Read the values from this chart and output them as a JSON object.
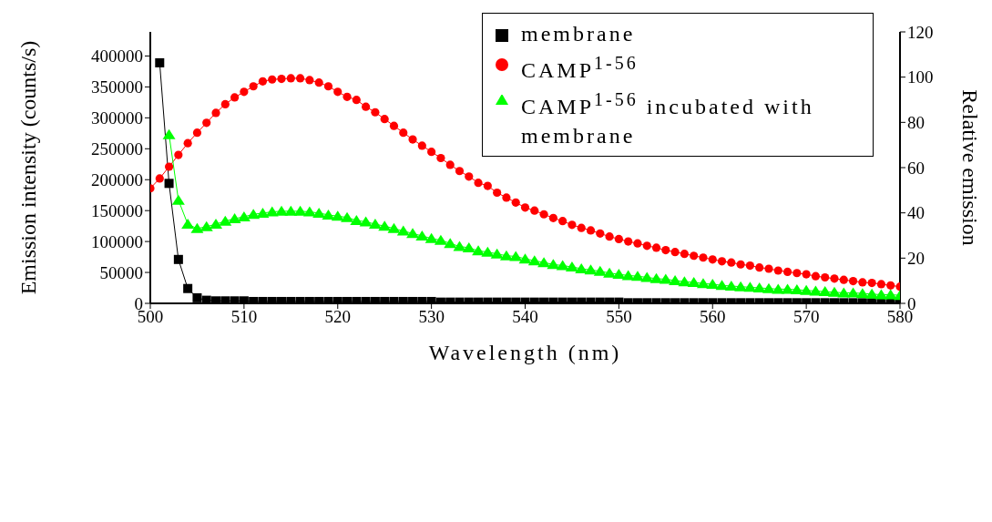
{
  "chart_data": {
    "type": "line",
    "xlabel": "Wavelength (nm)",
    "ylabel": "Emission intensity (counts/s)",
    "y2label": "Relative emission",
    "x": [
      500,
      501,
      502,
      503,
      504,
      505,
      506,
      507,
      508,
      509,
      510,
      511,
      512,
      513,
      514,
      515,
      516,
      517,
      518,
      519,
      520,
      521,
      522,
      523,
      524,
      525,
      526,
      527,
      528,
      529,
      530,
      531,
      532,
      533,
      534,
      535,
      536,
      537,
      538,
      539,
      540,
      541,
      542,
      543,
      544,
      545,
      546,
      547,
      548,
      549,
      550,
      551,
      552,
      553,
      554,
      555,
      556,
      557,
      558,
      559,
      560,
      561,
      562,
      563,
      564,
      565,
      566,
      567,
      568,
      569,
      570,
      571,
      572,
      573,
      574,
      575,
      576,
      577,
      578,
      579,
      580
    ],
    "xlim": [
      500,
      580
    ],
    "xticks": [
      500,
      510,
      520,
      530,
      540,
      550,
      560,
      570,
      580
    ],
    "ylim": [
      0,
      439000
    ],
    "yticks": [
      0,
      50000,
      100000,
      150000,
      200000,
      250000,
      300000,
      350000,
      400000
    ],
    "y2lim": [
      0,
      120
    ],
    "y2ticks": [
      0,
      20,
      40,
      60,
      80,
      100,
      120
    ],
    "grid": false,
    "legend": "top right",
    "series": [
      {
        "name": "membrane",
        "color": "#000000",
        "marker": "square",
        "values": [
          null,
          389000,
          194000,
          71000,
          24000,
          9000,
          5000,
          4000,
          4000,
          4000,
          4000,
          3000,
          3000,
          3000,
          3000,
          3000,
          3000,
          3000,
          3000,
          3000,
          3000,
          3000,
          3000,
          3000,
          3000,
          3000,
          3000,
          3000,
          3000,
          3000,
          3000,
          2000,
          2000,
          2000,
          2000,
          2000,
          2000,
          2000,
          2000,
          2000,
          2000,
          2000,
          2000,
          2000,
          2000,
          2000,
          2000,
          2000,
          2000,
          2000,
          2000,
          1000,
          1000,
          1000,
          1000,
          1000,
          1000,
          1000,
          1000,
          1000,
          1000,
          1000,
          1000,
          1000,
          1000,
          1000,
          1000,
          1000,
          1000,
          1000,
          1000,
          1000,
          1000,
          1000,
          1000,
          1000,
          1000,
          1000,
          1000,
          1000,
          1000
        ]
      },
      {
        "name": "CAMP$^{1-56}$",
        "color": "#ff0000",
        "marker": "circle",
        "values": [
          186000,
          202000,
          221000,
          240000,
          259000,
          276000,
          292000,
          308000,
          322000,
          333000,
          342000,
          351000,
          359000,
          362000,
          363000,
          364000,
          364000,
          361000,
          357000,
          351000,
          342000,
          334000,
          329000,
          318000,
          309000,
          298000,
          287000,
          276000,
          265000,
          255000,
          245000,
          235000,
          224000,
          214000,
          205000,
          195000,
          190000,
          179000,
          171000,
          163000,
          155000,
          150000,
          144000,
          138000,
          133000,
          127000,
          122000,
          118000,
          113000,
          108000,
          104000,
          100000,
          97000,
          93000,
          90000,
          86000,
          83000,
          80000,
          77000,
          74000,
          71000,
          68000,
          66000,
          63000,
          61000,
          58000,
          56000,
          53000,
          51000,
          49000,
          47000,
          44000,
          42000,
          40000,
          38000,
          36000,
          34000,
          33000,
          31000,
          29000,
          27000
        ]
      },
      {
        "name": "CAMP$^{1-56}$ incubated with membrane",
        "color": "#00ff00",
        "marker": "triangle",
        "values": [
          null,
          null,
          273000,
          167000,
          128000,
          121000,
          124000,
          128000,
          133000,
          137000,
          140000,
          144000,
          146000,
          148000,
          149000,
          149000,
          149000,
          148000,
          146000,
          143000,
          141000,
          139000,
          134000,
          132000,
          128000,
          125000,
          121000,
          117000,
          113000,
          109000,
          105000,
          102000,
          97000,
          92000,
          90000,
          85000,
          83000,
          80000,
          77000,
          76000,
          72000,
          69000,
          66000,
          63000,
          61000,
          59000,
          56000,
          54000,
          52000,
          49000,
          47000,
          45000,
          44000,
          42000,
          40000,
          39000,
          37000,
          35000,
          34000,
          32000,
          31000,
          29000,
          28000,
          27000,
          26000,
          25000,
          24000,
          23000,
          23000,
          22000,
          21000,
          20000,
          19000,
          18000,
          17000,
          17000,
          16000,
          15000,
          14000,
          14000,
          13000
        ]
      }
    ]
  }
}
